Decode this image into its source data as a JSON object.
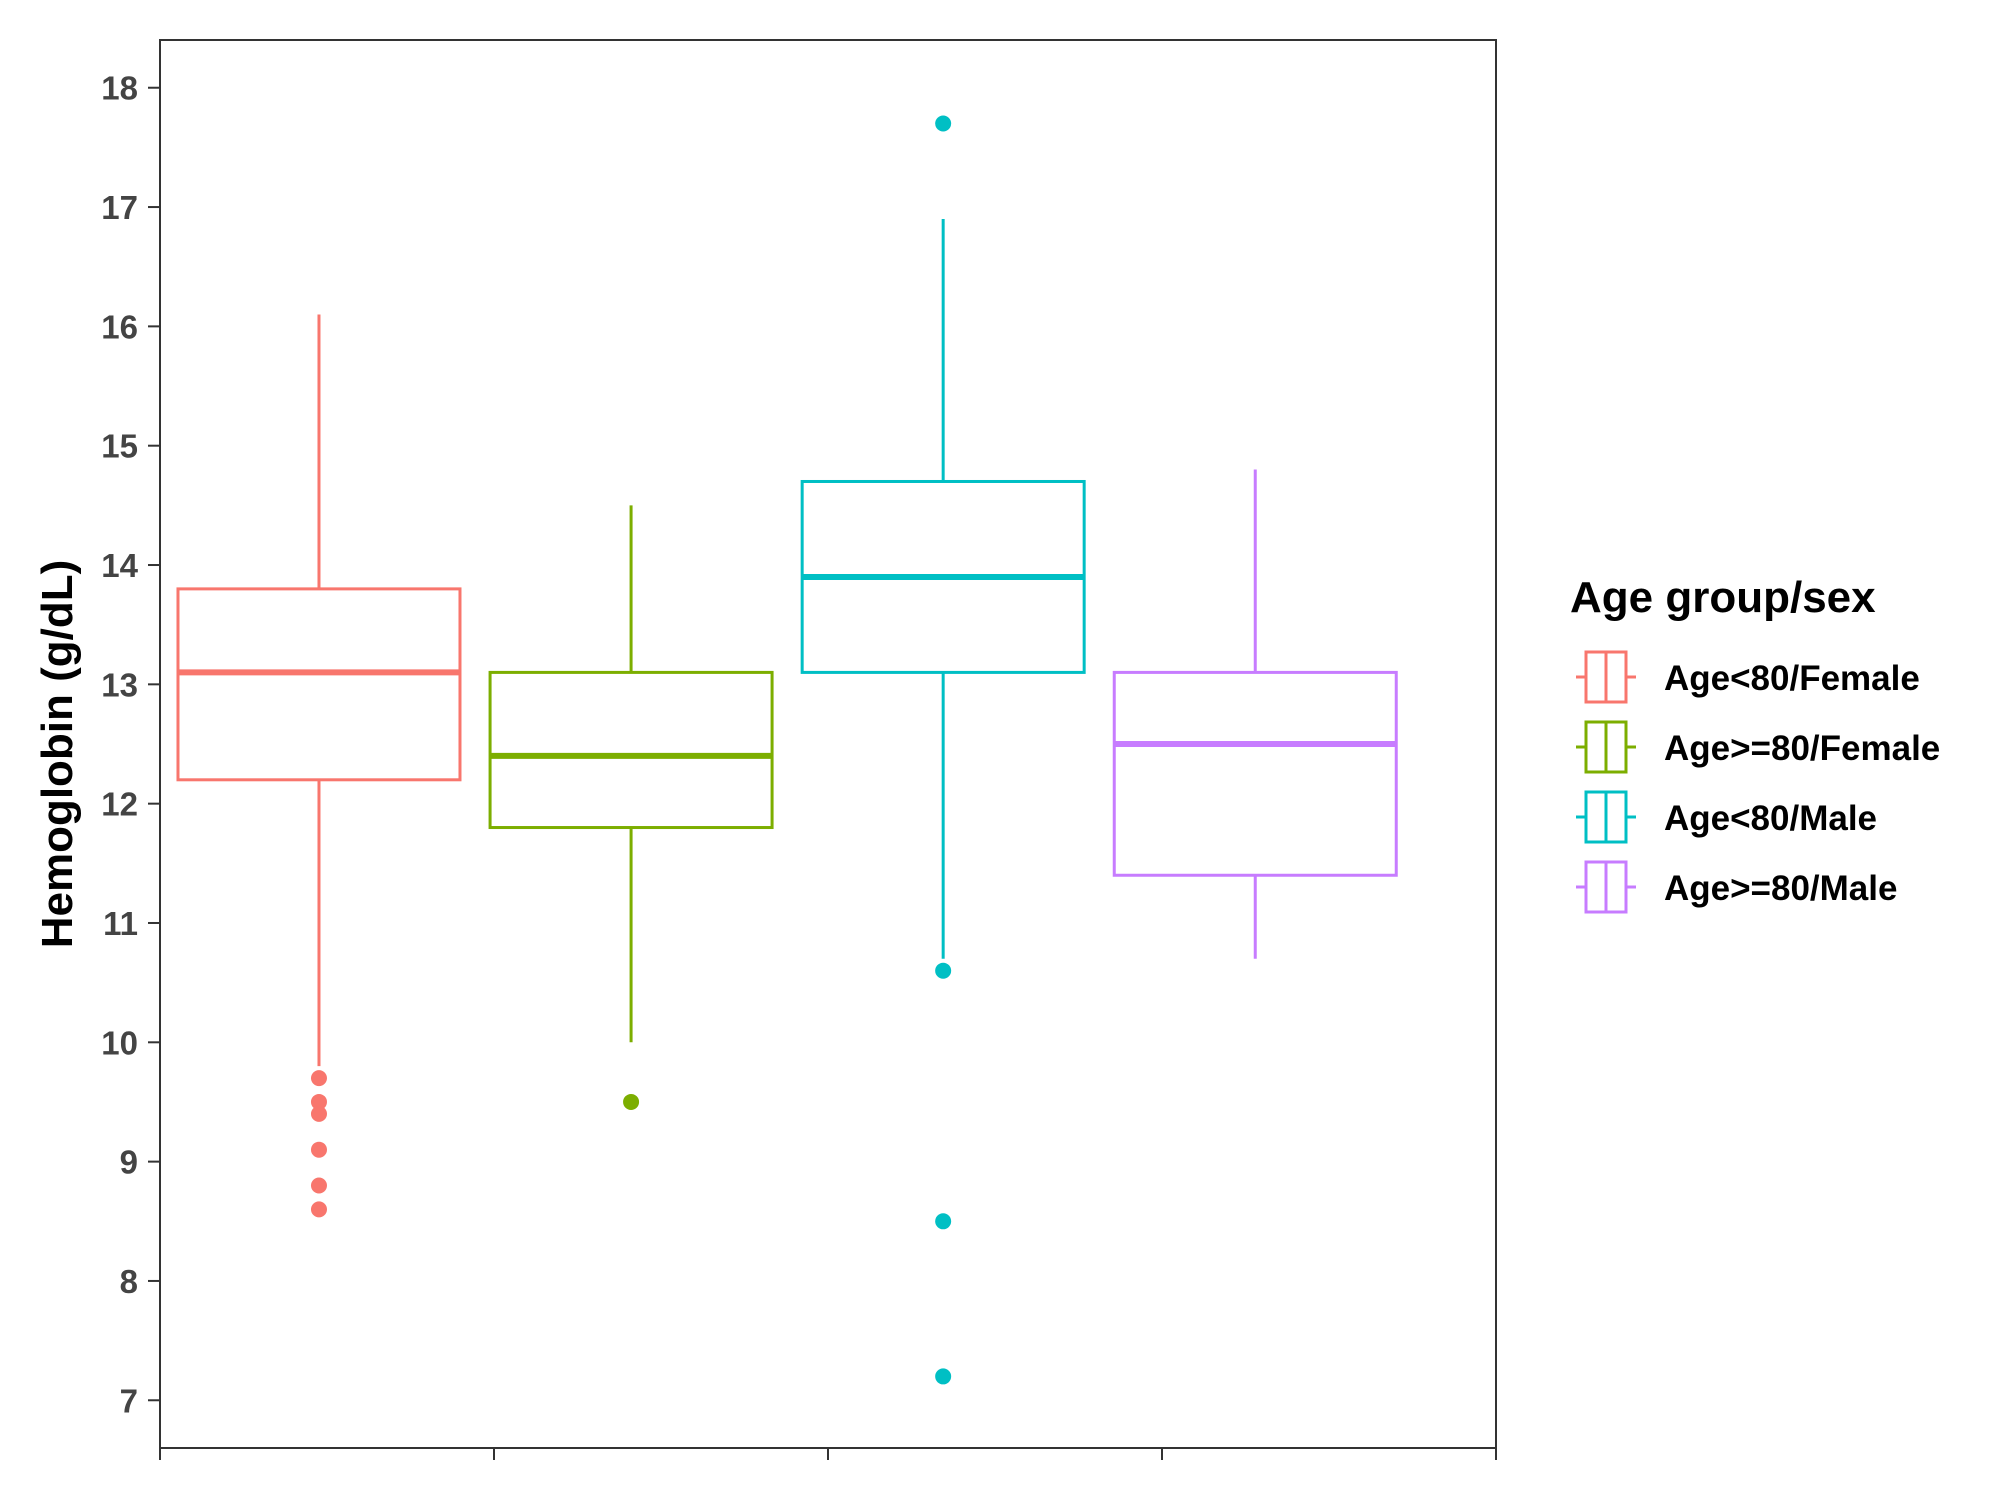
{
  "chart_data": {
    "type": "boxplot",
    "ylabel": "Hemoglobin (g/dL)",
    "xlabel": "",
    "ylim": [
      6.6,
      18.4
    ],
    "yticks": [
      7,
      8,
      9,
      10,
      11,
      12,
      13,
      14,
      15,
      16,
      17,
      18
    ],
    "grid": false,
    "legend": {
      "title": "Age group/sex",
      "position": "right"
    },
    "series": [
      {
        "name": "Age<80/Female",
        "color": "#F8766D",
        "whisker_low": 9.8,
        "q1": 12.2,
        "median": 13.1,
        "q3": 13.8,
        "whisker_high": 16.1,
        "outliers": [
          9.7,
          9.5,
          9.4,
          9.1,
          8.8,
          8.6
        ]
      },
      {
        "name": "Age>=80/Female",
        "color": "#7CAE00",
        "whisker_low": 10.0,
        "q1": 11.8,
        "median": 12.4,
        "q3": 13.1,
        "whisker_high": 14.5,
        "outliers": [
          9.5
        ]
      },
      {
        "name": "Age<80/Male",
        "color": "#00BFC4",
        "whisker_low": 10.7,
        "q1": 13.1,
        "median": 13.9,
        "q3": 14.7,
        "whisker_high": 16.9,
        "outliers": [
          17.7,
          10.6,
          8.5,
          7.2
        ]
      },
      {
        "name": "Age>=80/Male",
        "color": "#C77CFF",
        "whisker_low": 10.7,
        "q1": 11.4,
        "median": 12.5,
        "q3": 13.1,
        "whisker_high": 14.8,
        "outliers": []
      }
    ]
  }
}
